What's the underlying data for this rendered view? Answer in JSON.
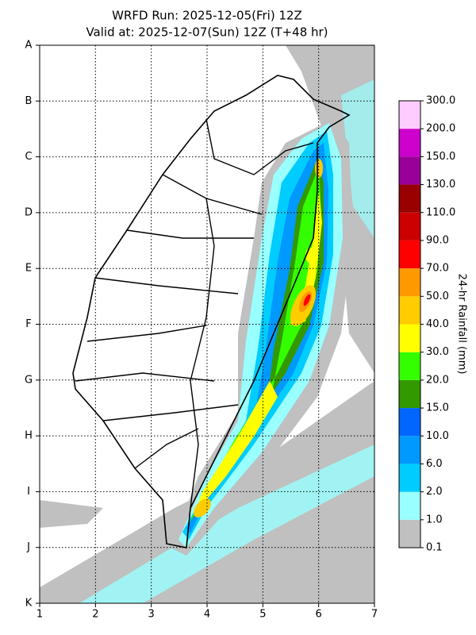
{
  "header": {
    "title": "WRFD Run: 2025-12-05(Fri) 12Z",
    "subtitle": "Valid at: 2025-12-07(Sun) 12Z (T+48 hr)"
  },
  "map": {
    "rows": [
      "A",
      "B",
      "C",
      "D",
      "E",
      "F",
      "G",
      "H",
      "I",
      "J",
      "K"
    ],
    "cols": [
      "1",
      "2",
      "3",
      "4",
      "5",
      "6",
      "7"
    ]
  },
  "colorbar": {
    "title": "24-hr Rainfall (mm)",
    "levels": [
      "0.1",
      "1.0",
      "2.0",
      "6.0",
      "10.0",
      "15.0",
      "20.0",
      "30.0",
      "40.0",
      "50.0",
      "70.0",
      "90.0",
      "110.0",
      "130.0",
      "150.0",
      "200.0",
      "300.0"
    ],
    "colors": [
      "#c0c0c0",
      "#99ffff",
      "#00ccff",
      "#0099ff",
      "#0066ff",
      "#339900",
      "#33ff00",
      "#ffff00",
      "#ffcc00",
      "#ff9900",
      "#ff0000",
      "#cc0000",
      "#990000",
      "#990099",
      "#cc00cc",
      "#ffccff"
    ]
  }
}
